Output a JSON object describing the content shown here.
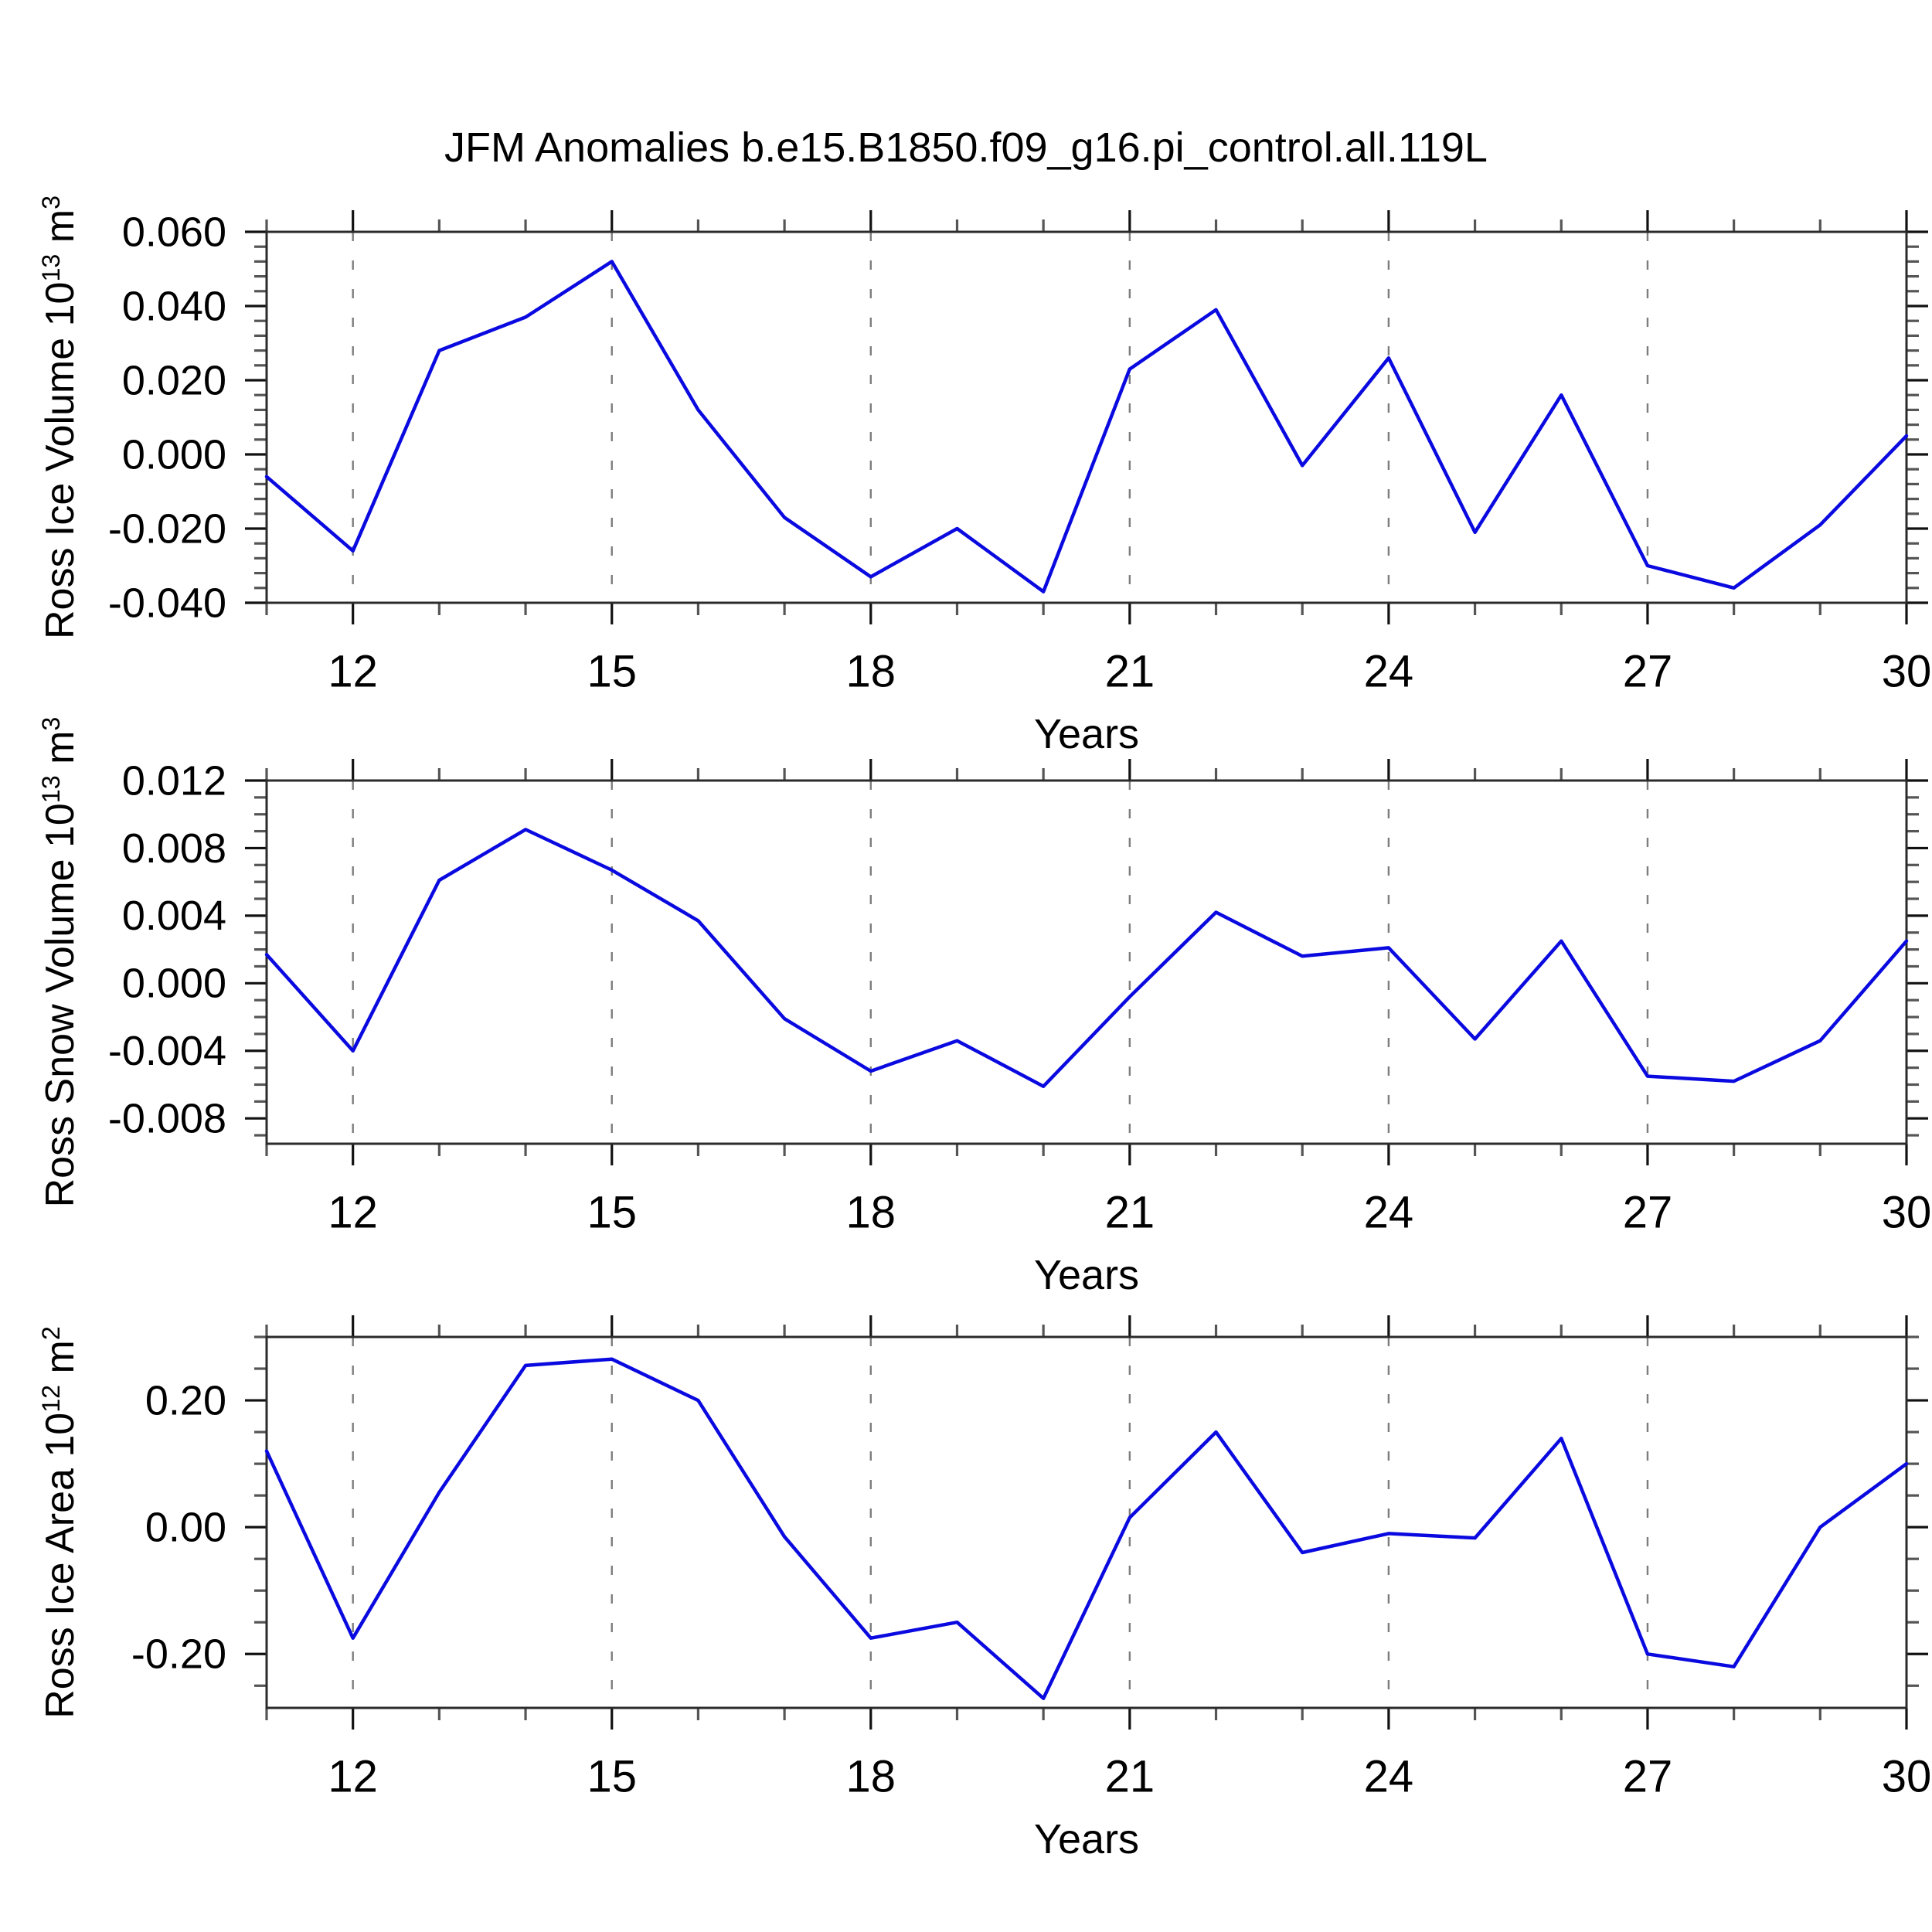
{
  "title": "JFM Anomalies b.e15.B1850.f09_g16.pi_control.all.119L",
  "accent_colors": {
    "line": "#0a0ae0",
    "grid_dash": "#7d7d7d",
    "frame": "#2b2b2b",
    "text": "#000000"
  },
  "chart_data": [
    {
      "type": "line",
      "name": "ross-ice-volume",
      "ylabel": {
        "prefix": "Ross Ice Volume 10",
        "sup1": "13",
        "mid": " m",
        "sup2": "3"
      },
      "xlabel": "Years",
      "x": [
        11,
        12,
        13,
        14,
        15,
        16,
        17,
        18,
        19,
        20,
        21,
        22,
        23,
        24,
        25,
        26,
        27,
        28,
        29,
        30
      ],
      "values": [
        -0.006,
        -0.026,
        0.028,
        0.037,
        0.052,
        0.012,
        -0.017,
        -0.033,
        -0.02,
        -0.037,
        0.023,
        0.039,
        -0.003,
        0.026,
        -0.021,
        0.016,
        -0.03,
        -0.036,
        -0.019,
        0.005
      ],
      "xlim": [
        11,
        30
      ],
      "ylim": [
        -0.04,
        0.06
      ],
      "ytick_values": [
        0.06,
        0.04,
        0.02,
        0.0,
        -0.02,
        -0.04
      ],
      "ytick_labels": [
        "0.060",
        "0.040",
        "0.020",
        "0.000",
        "-0.020",
        "-0.040"
      ],
      "yminor_step": 0.004,
      "xtick_major": [
        12,
        15,
        18,
        21,
        24,
        27,
        30
      ],
      "xtick_labels": [
        "12",
        "15",
        "18",
        "21",
        "24",
        "27",
        "30"
      ],
      "xminor_step": 1,
      "grid_years": [
        12,
        15,
        18,
        21,
        24,
        27
      ],
      "legend": "none",
      "grid": "vertical-dashed"
    },
    {
      "type": "line",
      "name": "ross-snow-volume",
      "ylabel": {
        "prefix": "Ross Snow Volume 10",
        "sup1": "13",
        "mid": " m",
        "sup2": "3"
      },
      "xlabel": "Years",
      "x": [
        11,
        12,
        13,
        14,
        15,
        16,
        17,
        18,
        19,
        20,
        21,
        22,
        23,
        24,
        25,
        26,
        27,
        28,
        29,
        30
      ],
      "values": [
        0.0017,
        -0.004,
        0.0061,
        0.0091,
        0.0067,
        0.0037,
        -0.0021,
        -0.0052,
        -0.0034,
        -0.0061,
        -0.0008,
        0.0042,
        0.0016,
        0.0021,
        -0.0033,
        0.0025,
        -0.0055,
        -0.0058,
        -0.0034,
        0.0025
      ],
      "xlim": [
        11,
        30
      ],
      "ylim": [
        -0.0095,
        0.012
      ],
      "ytick_values": [
        0.012,
        0.008,
        0.004,
        0.0,
        -0.004,
        -0.008
      ],
      "ytick_labels": [
        "0.012",
        "0.008",
        "0.004",
        "0.000",
        "-0.004",
        "-0.008"
      ],
      "yminor_step": 0.001,
      "xtick_major": [
        12,
        15,
        18,
        21,
        24,
        27,
        30
      ],
      "xtick_labels": [
        "12",
        "15",
        "18",
        "21",
        "24",
        "27",
        "30"
      ],
      "xminor_step": 1,
      "grid_years": [
        12,
        15,
        18,
        21,
        24,
        27
      ],
      "legend": "none",
      "grid": "vertical-dashed"
    },
    {
      "type": "line",
      "name": "ross-ice-area",
      "ylabel": {
        "prefix": "Ross Ice Area 10",
        "sup1": "12",
        "mid": " m",
        "sup2": "2"
      },
      "xlabel": "Years",
      "x": [
        11,
        12,
        13,
        14,
        15,
        16,
        17,
        18,
        19,
        20,
        21,
        22,
        23,
        24,
        25,
        26,
        27,
        28,
        29,
        30
      ],
      "values": [
        0.12,
        -0.175,
        0.055,
        0.255,
        0.265,
        0.2,
        -0.015,
        -0.175,
        -0.15,
        -0.27,
        0.015,
        0.15,
        -0.04,
        -0.01,
        -0.017,
        0.14,
        -0.2,
        -0.22,
        0.0,
        0.1
      ],
      "xlim": [
        11,
        30
      ],
      "ylim": [
        -0.285,
        0.3
      ],
      "ytick_values": [
        0.2,
        0.0,
        -0.2
      ],
      "ytick_labels": [
        "0.20",
        "0.00",
        "-0.20"
      ],
      "yminor_step": 0.05,
      "xtick_major": [
        12,
        15,
        18,
        21,
        24,
        27,
        30
      ],
      "xtick_labels": [
        "12",
        "15",
        "18",
        "21",
        "24",
        "27",
        "30"
      ],
      "xminor_step": 1,
      "grid_years": [
        12,
        15,
        18,
        21,
        24,
        27
      ],
      "legend": "none",
      "grid": "vertical-dashed"
    }
  ]
}
